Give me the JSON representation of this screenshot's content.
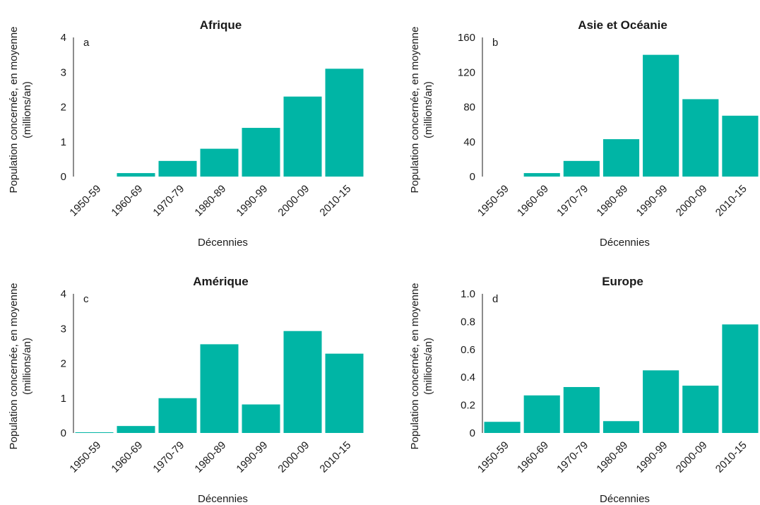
{
  "bar_color": "#00b5a5",
  "chart_data": [
    {
      "type": "bar",
      "panel": "a",
      "title": "Afrique",
      "xlabel": "Décennies",
      "ylabel_lines": [
        "Population concernée, en moyenne",
        "(millions/an)"
      ],
      "categories": [
        "1950-59",
        "1960-69",
        "1970-79",
        "1980-89",
        "1990-99",
        "2000-09",
        "2010-15"
      ],
      "values": [
        0,
        0.1,
        0.45,
        0.8,
        1.4,
        2.3,
        3.1
      ],
      "ylim": [
        0,
        4
      ],
      "yticks": [
        "0",
        "1",
        "2",
        "3",
        "4"
      ]
    },
    {
      "type": "bar",
      "panel": "b",
      "title": "Asie et Océanie",
      "xlabel": "Décennies",
      "ylabel_lines": [
        "Population concernée, en moyenne",
        "(millions/an)"
      ],
      "categories": [
        "1950-59",
        "1960-69",
        "1970-79",
        "1980-89",
        "1990-99",
        "2000-09",
        "2010-15"
      ],
      "values": [
        0,
        4,
        18,
        43,
        140,
        89,
        70
      ],
      "ylim": [
        0,
        160
      ],
      "yticks": [
        "0",
        "40",
        "80",
        "120",
        "160"
      ]
    },
    {
      "type": "bar",
      "panel": "c",
      "title": "Amérique",
      "xlabel": "Décennies",
      "ylabel_lines": [
        "Population concernée, en moyenne",
        "(millions/an)"
      ],
      "categories": [
        "1950-59",
        "1960-69",
        "1970-79",
        "1980-89",
        "1990-99",
        "2000-09",
        "2010-15"
      ],
      "values": [
        0.02,
        0.2,
        1.0,
        2.55,
        0.82,
        2.93,
        2.28
      ],
      "ylim": [
        0,
        4
      ],
      "yticks": [
        "0",
        "1",
        "2",
        "3",
        "4"
      ]
    },
    {
      "type": "bar",
      "panel": "d",
      "title": "Europe",
      "xlabel": "Décennies",
      "ylabel_lines": [
        "Population concernée, en moyenne",
        "(millions/an)"
      ],
      "categories": [
        "1950-59",
        "1960-69",
        "1970-79",
        "1980-89",
        "1990-99",
        "2000-09",
        "2010-15"
      ],
      "values": [
        0.08,
        0.27,
        0.33,
        0.085,
        0.45,
        0.34,
        0.78
      ],
      "ylim": [
        0,
        1.0
      ],
      "yticks": [
        "0",
        "0.2",
        "0.4",
        "0.6",
        "0.8",
        "1.0"
      ]
    }
  ]
}
